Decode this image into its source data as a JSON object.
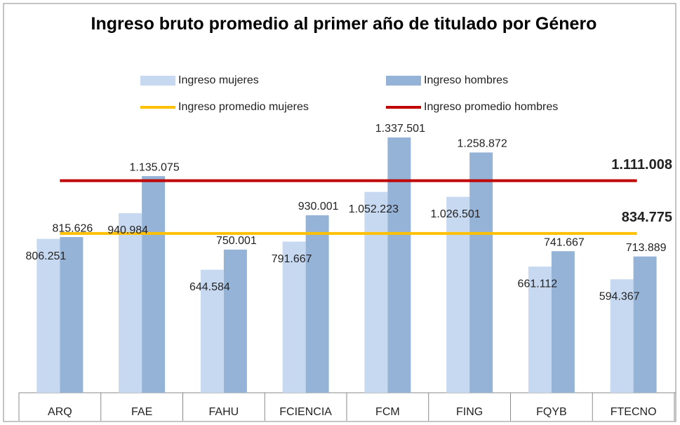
{
  "chart_data": {
    "type": "bar",
    "title": "Ingreso bruto promedio al primer año de titulado por Género",
    "categories": [
      "ARQ",
      "FAE",
      "FAHU",
      "FCIENCIA",
      "FCM",
      "FING",
      "FQYB",
      "FTECNO"
    ],
    "series": [
      {
        "name": "Ingreso mujeres",
        "color": "#c6d9f1",
        "values": [
          806251,
          940984,
          644584,
          791667,
          1052223,
          1026501,
          661112,
          594367
        ],
        "value_labels": [
          "806.251",
          "940.984",
          "644.584",
          "791.667",
          "1.052.223",
          "1.026.501",
          "661.112",
          "594.367"
        ]
      },
      {
        "name": "Ingreso hombres",
        "color": "#95b3d7",
        "values": [
          815626,
          1135075,
          750001,
          930001,
          1337501,
          1258872,
          741667,
          713889
        ],
        "value_labels": [
          "815.626",
          "1.135.075",
          "750.001",
          "930.001",
          "1.337.501",
          "1.258.872",
          "741.667",
          "713.889"
        ]
      }
    ],
    "lines": [
      {
        "name": "Ingreso promedio mujeres",
        "color": "#ffc000",
        "value": 834775,
        "value_label": "834.775"
      },
      {
        "name": "Ingreso promedio hombres",
        "color": "#c00000",
        "value": 1111008,
        "value_label": "1.111.008"
      }
    ],
    "ylim": [
      0,
      1400000
    ]
  }
}
